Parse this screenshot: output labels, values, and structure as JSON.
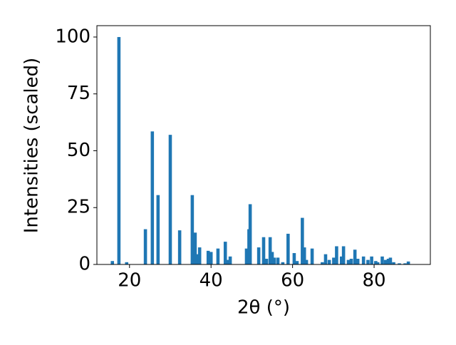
{
  "chart_data": {
    "type": "bar",
    "xlabel": "2θ (°)",
    "ylabel": "Intensities (scaled)",
    "x": [
      15.8,
      17.4,
      19.3,
      23.9,
      25.6,
      27.0,
      30.0,
      32.3,
      35.4,
      36.1,
      36.6,
      37.2,
      39.3,
      40.0,
      41.7,
      43.5,
      44.2,
      44.7,
      48.7,
      49.3,
      49.6,
      51.7,
      52.9,
      53.6,
      54.5,
      55.0,
      55.5,
      56.4,
      57.6,
      58.9,
      60.4,
      61.1,
      62.4,
      62.9,
      63.4,
      64.8,
      67.3,
      68.1,
      69.0,
      70.1,
      70.8,
      72.0,
      72.5,
      73.7,
      74.4,
      75.3,
      76.0,
      77.4,
      78.5,
      79.4,
      80.4,
      80.9,
      82.0,
      82.8,
      83.5,
      84.0,
      84.8,
      86.2,
      87.6,
      88.4
    ],
    "values": [
      1.5,
      100,
      1,
      15.5,
      58.5,
      30.5,
      57,
      15,
      30.5,
      14,
      4.5,
      7.5,
      6,
      5.5,
      7,
      10,
      2,
      3.5,
      7,
      15.5,
      26.5,
      7.5,
      12,
      2.5,
      12,
      5.5,
      3,
      3,
      1,
      13.5,
      5,
      1.5,
      20.5,
      7.5,
      2,
      7,
      1,
      4.5,
      2,
      3,
      8,
      3.5,
      8,
      2,
      2.5,
      6.5,
      2.5,
      3.5,
      2,
      3.5,
      1.5,
      1,
      3.5,
      2,
      2.5,
      3,
      1,
      0.5,
      0.5,
      1.3
    ],
    "color": "#1f77b4",
    "xlim": [
      12,
      93.8
    ],
    "xticks": [
      20,
      40,
      60,
      80
    ],
    "ylim": [
      0,
      105
    ],
    "yticks": [
      0,
      25,
      50,
      75,
      100
    ]
  }
}
